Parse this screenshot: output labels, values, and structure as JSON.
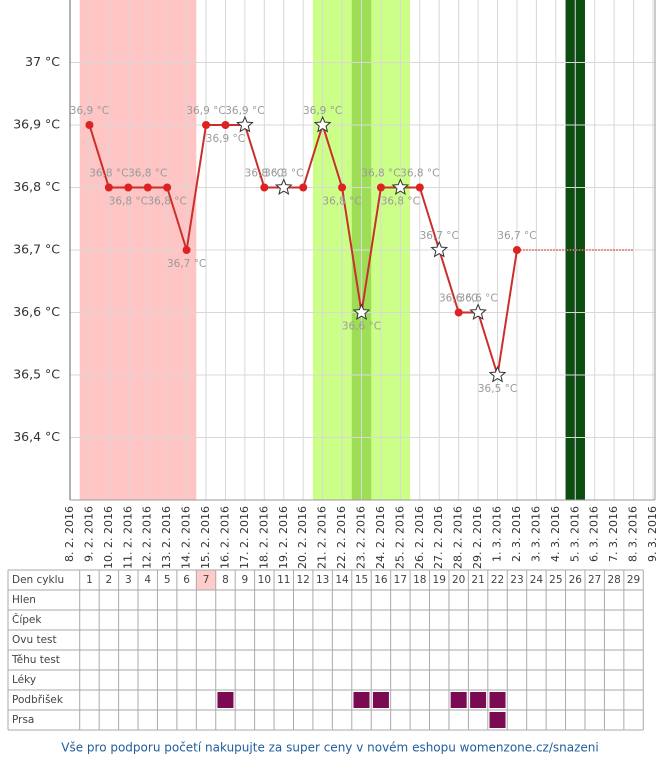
{
  "chart_data": {
    "type": "line",
    "categories": [
      "8. 2. 2016",
      "9. 2. 2016",
      "10. 2. 2016",
      "11. 2. 2016",
      "12. 2. 2016",
      "13. 2. 2016",
      "14. 2. 2016",
      "15. 2. 2016",
      "16. 2. 2016",
      "17. 2. 2016",
      "18. 2. 2016",
      "19. 2. 2016",
      "20. 2. 2016",
      "21. 2. 2016",
      "22. 2. 2016",
      "23. 2. 2016",
      "24. 2. 2016",
      "25. 2. 2016",
      "26. 2. 2016",
      "27. 2. 2016",
      "28. 2. 2016",
      "29. 2. 2016",
      "1. 3. 2016",
      "2. 3. 2016",
      "3. 3. 2016",
      "4. 3. 2016",
      "5. 3. 2016",
      "6. 3. 2016",
      "7. 3. 2016",
      "8. 3. 2016",
      "9. 3. 2016"
    ],
    "values": [
      null,
      36.9,
      36.8,
      36.8,
      36.8,
      36.8,
      36.7,
      36.9,
      36.9,
      36.9,
      36.8,
      36.8,
      36.8,
      36.9,
      36.8,
      36.6,
      36.8,
      36.8,
      36.8,
      36.7,
      36.6,
      36.6,
      36.5,
      36.7,
      null,
      null,
      null,
      null,
      null,
      null,
      null
    ],
    "value_labels": [
      null,
      "36,9 °C",
      "36,8 °C",
      "36,8 °C",
      "36,8 °C",
      "36,8 °C",
      "36,7 °C",
      "36,9 °C",
      "36,9 °C",
      "36,9 °C",
      "36,8 °C",
      "36,8 °C",
      null,
      "36,9 °C",
      "36,8 °C",
      "36,6 °C",
      "36,8 °C",
      "36,8 °C",
      "36,8 °C",
      "36,7 °C",
      "36,6 °C",
      "36,6 °C",
      "36,5 °C",
      "36,7 °C",
      null,
      null,
      null,
      null,
      null,
      null,
      null
    ],
    "label_side": [
      null,
      "above",
      "above",
      "below",
      "above",
      "below",
      "below",
      "above",
      "below",
      "above",
      "above",
      "above",
      null,
      "above",
      "below",
      "below",
      "above",
      "below",
      "above",
      "above",
      "above",
      "above",
      "below",
      "above",
      null,
      null,
      null,
      null,
      null,
      null,
      null
    ],
    "markers": [
      null,
      "dot",
      "dot",
      "dot",
      "dot",
      "dot",
      "dot",
      "dot",
      "dot",
      "star",
      "dot",
      "star",
      "dot",
      "star",
      "dot",
      "star",
      "dot",
      "star",
      "dot",
      "star",
      "dot",
      "star",
      "star",
      "dot",
      null,
      null,
      null,
      null,
      null,
      null,
      null
    ],
    "color": "#c9302c",
    "projection": {
      "value": 36.7,
      "from": "2. 3. 2016",
      "to": "8. 3. 2016"
    },
    "bands": [
      {
        "from": "9. 2. 2016",
        "to": "14. 2. 2016",
        "color": "#ffc4c4"
      },
      {
        "from": "21. 2. 2016",
        "to": "25. 2. 2016",
        "color": "#ccff88"
      },
      {
        "from": "23. 2. 2016",
        "to": "23. 2. 2016",
        "color": "#9ede57"
      },
      {
        "from": "5. 3. 2016",
        "to": "5. 3. 2016",
        "color": "#0c4d12"
      }
    ],
    "ylim": [
      36.3,
      37.1
    ],
    "yticks": [
      {
        "value": 36.4,
        "label": "36,4 °C"
      },
      {
        "value": 36.5,
        "label": "36,5 °C"
      },
      {
        "value": 36.6,
        "label": "36,6 °C"
      },
      {
        "value": 36.7,
        "label": "36,7 °C"
      },
      {
        "value": 36.8,
        "label": "36,8 °C"
      },
      {
        "value": 36.9,
        "label": "36,9 °C"
      },
      {
        "value": 37,
        "label": "37 °C"
      }
    ],
    "grid": true
  },
  "table": {
    "header": "Den cyklu",
    "days": [
      1,
      2,
      3,
      4,
      5,
      6,
      7,
      8,
      9,
      10,
      11,
      12,
      13,
      14,
      15,
      16,
      17,
      18,
      19,
      20,
      21,
      22,
      23,
      24,
      25,
      26,
      27,
      28,
      29
    ],
    "highlight_day": 7,
    "rows": [
      {
        "label": "Hlen",
        "marks": []
      },
      {
        "label": "Čípek",
        "marks": []
      },
      {
        "label": "Ovu test",
        "marks": []
      },
      {
        "label": "Těhu test",
        "marks": []
      },
      {
        "label": "Léky",
        "marks": []
      },
      {
        "label": "Podbřišek",
        "marks": [
          8,
          15,
          16,
          20,
          21,
          22
        ]
      },
      {
        "label": "Prsa",
        "marks": [
          22
        ]
      }
    ]
  },
  "footer": {
    "link": "Vše pro podporu početí nakupujte za super ceny v novém eshopu womenzone.cz/snazeni"
  }
}
